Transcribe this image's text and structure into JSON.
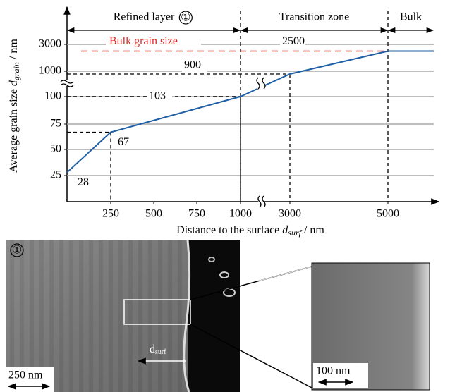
{
  "chart_data": {
    "type": "line",
    "ylabel": {
      "text": "Average grain size",
      "symbol": "d",
      "subscript": "grain",
      "unit": "/ nm"
    },
    "xlabel": {
      "text": "Distance to the surface",
      "symbol": "d",
      "subscript": "surf",
      "unit": "/ nm"
    },
    "x": [
      0,
      250,
      1000,
      3000,
      5000,
      6500
    ],
    "series": [
      {
        "color": "#1f5fa6",
        "values": [
          28,
          67,
          103,
          900,
          2500,
          2500
        ]
      }
    ],
    "xlim": [
      0,
      6500
    ],
    "xticks": [
      250,
      500,
      750,
      1000,
      3000,
      5000
    ],
    "ylim": [
      0,
      4000
    ],
    "yticks": [
      25,
      50,
      75,
      100,
      1000,
      3000
    ],
    "grid": true,
    "reference_line": {
      "label": "Bulk grain size",
      "value": 2500,
      "color": "#e02020"
    },
    "zones": [
      {
        "label": "Refined layer",
        "marker": "①",
        "start": 0,
        "end": 1000
      },
      {
        "label": "Transition zone",
        "start": 1000,
        "end": 5000
      },
      {
        "label": "Bulk",
        "start": 5000,
        "end": 6500
      }
    ]
  },
  "micrographs": {
    "marker": "①",
    "scale_left": "250 nm",
    "direction": {
      "symbol": "d",
      "subscript": "surf"
    },
    "scale_right": "100 nm"
  }
}
